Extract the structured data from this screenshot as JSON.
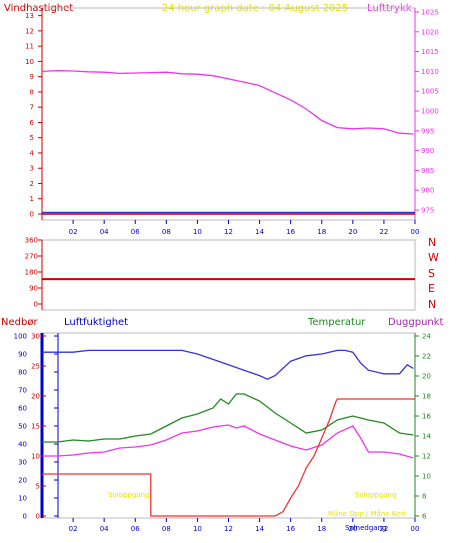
{
  "chart_data": [
    {
      "type": "line",
      "title": "24 hour graph date : 04 August 2025",
      "left_label": "Vindhastighet",
      "right_label": "Lufttrykk",
      "x_ticks": [
        "02",
        "04",
        "06",
        "08",
        "10",
        "12",
        "14",
        "16",
        "18",
        "20",
        "22",
        "00"
      ],
      "y_left_ticks": [
        "0",
        "1",
        "2",
        "3",
        "4",
        "5",
        "6",
        "7",
        "8",
        "9",
        "10",
        "11",
        "12",
        "13"
      ],
      "y_right_ticks": [
        "975",
        "980",
        "985",
        "990",
        "995",
        "1000",
        "1005",
        "1010",
        "1015",
        "1020",
        "1025"
      ],
      "ylim_left": [
        0,
        13.5
      ],
      "ylim_right": [
        974,
        1026
      ],
      "xlim": [
        0,
        24
      ],
      "series": [
        {
          "name": "Lufttrykk",
          "axis": "right",
          "color": "#ee33ee",
          "x": [
            0,
            1,
            2,
            3,
            4,
            5,
            6,
            7,
            8,
            9,
            10,
            11,
            12,
            13,
            14,
            15,
            16,
            17,
            18,
            19,
            20,
            21,
            22,
            23,
            23.9
          ],
          "y": [
            1010,
            1010.2,
            1010.1,
            1009.9,
            1009.8,
            1009.5,
            1009.6,
            1009.7,
            1009.8,
            1009.4,
            1009.3,
            1008.9,
            1008.1,
            1007.3,
            1006.4,
            1004.6,
            1002.8,
            1000.5,
            997.6,
            995.8,
            995.5,
            995.7,
            995.5,
            994.4,
            994.2
          ]
        },
        {
          "name": "",
          "axis": "left",
          "color": "#cc0000",
          "x": [
            0,
            24
          ],
          "y": [
            0,
            0
          ]
        },
        {
          "name": "",
          "axis": "left",
          "color": "#3333cc",
          "x": [
            0,
            24
          ],
          "y": [
            0.1,
            0.1
          ]
        }
      ]
    },
    {
      "type": "line",
      "y_left_ticks": [
        "0",
        "90",
        "180",
        "270",
        "360"
      ],
      "direction_labels": [
        "N",
        "W",
        "S",
        "E",
        "N"
      ],
      "ylim": [
        0,
        360
      ],
      "xlim": [
        0,
        24
      ],
      "series": [
        {
          "name": "",
          "color": "#cc0000",
          "x": [
            0,
            24
          ],
          "y": [
            140,
            140
          ]
        }
      ]
    },
    {
      "type": "line",
      "labels": {
        "nedbor": "Nedbør",
        "luftfuktighet": "Luftfuktighet",
        "temperatur": "Temperatur",
        "duggpunkt": "Duggpunkt"
      },
      "x_ticks": [
        "02",
        "04",
        "06",
        "08",
        "10",
        "12",
        "14",
        "16",
        "18",
        "20",
        "22",
        "00"
      ],
      "y_humidity_ticks": [
        "0",
        "10",
        "20",
        "30",
        "40",
        "50",
        "60",
        "70",
        "80",
        "90",
        "100"
      ],
      "y_rain_ticks": [
        "0",
        "5",
        "10",
        "15",
        "20",
        "25",
        "30"
      ],
      "y_temp_ticks": [
        "6",
        "8",
        "10",
        "12",
        "14",
        "16",
        "18",
        "20",
        "22",
        "24"
      ],
      "ylim_humidity": [
        0,
        100
      ],
      "ylim_rain": [
        0,
        30
      ],
      "ylim_temp": [
        6,
        24
      ],
      "xlim": [
        0,
        24
      ],
      "annotations": {
        "sunrise": "Soloppgang",
        "sunset": "Solnedgang",
        "moon": "Måne Opp / Måne Ned"
      },
      "series": [
        {
          "name": "Luftfuktighet",
          "axis": "humidity",
          "color": "#3333dd",
          "x": [
            0,
            2,
            3,
            4,
            5,
            6,
            7,
            8,
            9,
            10,
            11,
            12,
            13,
            14,
            14.5,
            15,
            16,
            17,
            18,
            19,
            19.5,
            20,
            20.5,
            21,
            22,
            23,
            23.5,
            23.9
          ],
          "y": [
            91,
            91,
            92,
            92,
            92,
            92,
            92,
            92,
            92,
            90,
            87,
            84,
            81,
            78,
            76,
            78,
            86,
            89,
            90,
            92,
            92,
            91,
            85,
            81,
            79,
            79,
            84,
            82
          ]
        },
        {
          "name": "Temperatur",
          "axis": "temp",
          "color": "#228822",
          "x": [
            0,
            1,
            2,
            3,
            4,
            5,
            6,
            7,
            8,
            9,
            10,
            11,
            11.5,
            12,
            12.5,
            13,
            14,
            15,
            16,
            17,
            18,
            19,
            20,
            21,
            22,
            23,
            23.9
          ],
          "y": [
            13.4,
            13.4,
            13.6,
            13.5,
            13.7,
            13.7,
            14.0,
            14.2,
            15.0,
            15.8,
            16.2,
            16.8,
            17.7,
            17.2,
            18.2,
            18.2,
            17.5,
            16.3,
            15.3,
            14.3,
            14.6,
            15.6,
            16.0,
            15.6,
            15.3,
            14.3,
            14.1
          ]
        },
        {
          "name": "Duggpunkt",
          "axis": "temp",
          "color": "#ee33ee",
          "x": [
            0,
            1,
            2,
            3,
            4,
            5,
            6,
            7,
            8,
            9,
            10,
            11,
            12,
            12.5,
            13,
            14,
            15,
            16,
            17,
            18,
            19,
            20,
            20.5,
            21,
            22,
            23,
            23.9
          ],
          "y": [
            12.0,
            12.0,
            12.1,
            12.3,
            12.4,
            12.8,
            12.9,
            13.1,
            13.6,
            14.3,
            14.5,
            14.9,
            15.1,
            14.8,
            15.0,
            14.2,
            13.6,
            13.0,
            12.6,
            13.1,
            14.3,
            15.0,
            13.8,
            12.4,
            12.4,
            12.2,
            11.8
          ]
        },
        {
          "name": "Nedbør",
          "axis": "rain",
          "color": "#ee3333",
          "x": [
            0,
            7,
            7,
            15,
            15.5,
            16,
            16.5,
            17,
            17.5,
            18,
            18.5,
            18.9,
            19,
            20,
            21,
            22,
            23,
            24
          ],
          "y": [
            7,
            7,
            0,
            0,
            0.7,
            3,
            5,
            8,
            10,
            13,
            16,
            19,
            19.5,
            19.5,
            19.5,
            19.5,
            19.5,
            19.5
          ]
        }
      ]
    }
  ]
}
